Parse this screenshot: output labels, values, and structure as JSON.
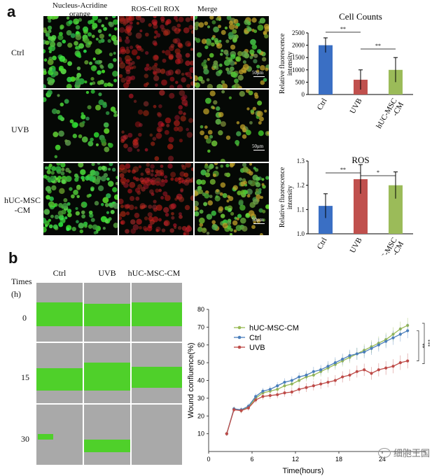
{
  "panel_a": {
    "letter": "a",
    "column_labels": [
      "Nucleus-Acridine\norange",
      "ROS-Cell ROX",
      "Merge"
    ],
    "row_labels": [
      "Ctrl",
      "UVB",
      "hUC-MSC\n-CM"
    ],
    "scale_bar_label": "50μm"
  },
  "panel_b": {
    "letter": "b",
    "column_labels": [
      "Ctrl",
      "UVB",
      "hUC-MSC-CM"
    ],
    "times_label": "Times\n(h)",
    "row_labels": [
      "0",
      "15",
      "30"
    ],
    "watermark": "细胞王国"
  },
  "colors": {
    "ctrl": "#3a6fc4",
    "uvb": "#c0504d",
    "msc": "#9bbb59",
    "wound_green": "#4fd02a",
    "wound_gray": "#a9a9a9",
    "ros_line_ctrl": "#4a7ebb",
    "ros_line_uvb": "#be4b48",
    "ros_line_msc": "#98b954"
  },
  "chart_data": [
    {
      "type": "bar",
      "title": "Cell Counts",
      "ylabel": "Relative fluorescence intensity",
      "categories": [
        "Ctrl",
        "UVB",
        "hUC-MSC\n-CM"
      ],
      "values": [
        2000,
        600,
        1000
      ],
      "errors": [
        300,
        400,
        500
      ],
      "ylim": [
        0,
        2500
      ],
      "yticks": [
        0,
        500,
        1000,
        1500,
        2000,
        2500
      ],
      "significance": [
        {
          "between": [
            0,
            1
          ],
          "label": "**"
        },
        {
          "between": [
            1,
            2
          ],
          "label": "**"
        }
      ]
    },
    {
      "type": "bar",
      "title": "ROS",
      "ylabel": "Relative fluorescence intensity",
      "categories": [
        "Ctrl",
        "UVB",
        "hUC-MSC\n-CM"
      ],
      "values": [
        1.115,
        1.225,
        1.2
      ],
      "errors": [
        0.05,
        0.06,
        0.055
      ],
      "ylim": [
        1.0,
        1.3
      ],
      "yticks": [
        1.0,
        1.1,
        1.2,
        1.3
      ],
      "significance": [
        {
          "between": [
            0,
            1
          ],
          "label": "**"
        },
        {
          "between": [
            1,
            2
          ],
          "label": "*"
        }
      ]
    },
    {
      "type": "line",
      "xlabel": "Time(hours)",
      "ylabel": "Wound confluence(%)",
      "xlim": [
        0,
        30
      ],
      "ylim": [
        0,
        80
      ],
      "xticks": [
        0,
        6,
        12,
        18,
        24
      ],
      "yticks": [
        10,
        20,
        30,
        40,
        50,
        60,
        70,
        80
      ],
      "x": [
        2.5,
        3.5,
        4.5,
        5.5,
        6.5,
        7.5,
        8.5,
        9.5,
        10.5,
        11.5,
        12.5,
        13.5,
        14.5,
        15.5,
        16.5,
        17.5,
        18.5,
        19.5,
        20.5,
        21.5,
        22.5,
        23.5,
        24.5,
        25.5,
        26.5,
        27.5
      ],
      "series": [
        {
          "name": "hUC-MSC-CM",
          "values": [
            10,
            24,
            23,
            25,
            30,
            33,
            34,
            35,
            37,
            38,
            40,
            42,
            43,
            45,
            47,
            49,
            51,
            53,
            55,
            57,
            59,
            61,
            63,
            66,
            69,
            71
          ]
        },
        {
          "name": "Ctrl",
          "values": [
            10,
            24,
            23.5,
            25.5,
            31,
            34,
            35,
            37,
            39,
            40,
            42,
            43,
            45,
            46,
            48,
            50,
            52,
            54,
            55,
            56,
            58,
            60,
            62,
            64,
            66,
            68
          ]
        },
        {
          "name": "UVB",
          "values": [
            10,
            23.5,
            23,
            24.5,
            29,
            31,
            31.5,
            32,
            33,
            33.5,
            35,
            36,
            37,
            38,
            39,
            40,
            42,
            43,
            45,
            46,
            44,
            46,
            47,
            48,
            50,
            51
          ]
        }
      ],
      "significance": [
        {
          "label": "**"
        },
        {
          "label": "***"
        }
      ]
    }
  ]
}
